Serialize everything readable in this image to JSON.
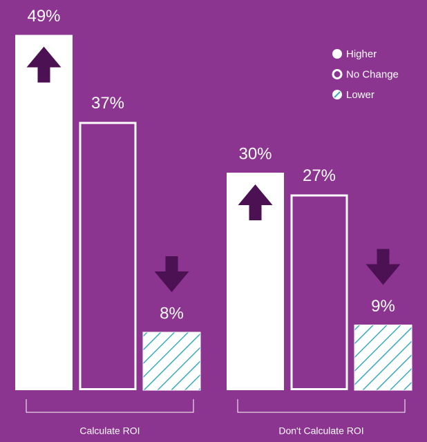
{
  "chart_data": {
    "type": "bar",
    "categories": [
      "Calculate ROI",
      "Don't Calculate ROI"
    ],
    "series": [
      {
        "name": "Higher",
        "color": "#ffffff",
        "style": "solid",
        "values": [
          49,
          30
        ],
        "value_labels": [
          "49%",
          "30%"
        ]
      },
      {
        "name": "No Change",
        "color": "#ffffff",
        "style": "outline",
        "values": [
          37,
          27
        ],
        "value_labels": [
          "37%",
          "27%"
        ]
      },
      {
        "name": "Lower",
        "color": "#3aa9bf",
        "style": "hatch",
        "values": [
          8,
          9
        ],
        "value_labels": [
          "8%",
          "9%"
        ]
      }
    ],
    "background": "#8b3590",
    "arrow_color": "#4b1152",
    "legend": "upper right"
  }
}
